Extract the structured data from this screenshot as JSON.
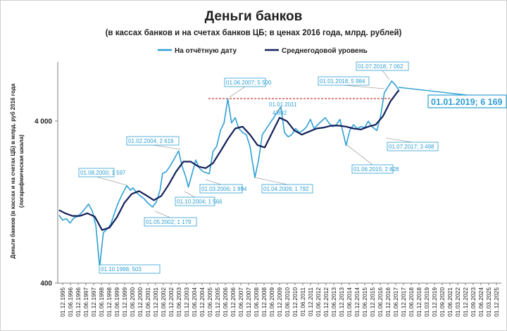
{
  "chart_data": {
    "type": "line",
    "title": "Деньги банков",
    "subtitle": "(в кассах банков и на счетах банков ЦБ; в ценах 2016 года, млрд. рублей)",
    "ylabel_lines": [
      "Деньги банков (в кассах и на счетах ЦБ) в млрд. руб 2016 года",
      "(логарифмическая шкала)"
    ],
    "y_scale": "log",
    "ylim": [
      400,
      10000
    ],
    "y_ticks": [
      {
        "value": 4000,
        "label": "4 000"
      },
      {
        "value": 400,
        "label": "400"
      }
    ],
    "x_range": [
      "1995-12-01",
      "2025-12-01"
    ],
    "x_tick_labels": [
      "01.12.1995",
      "01.06.1996",
      "01.12.1996",
      "01.06.1997",
      "01.12.1997",
      "01.06.1998",
      "01.12.1998",
      "01.06.1999",
      "01.12.1999",
      "01.06.2000",
      "01.12.2000",
      "01.06.2001",
      "01.12.2001",
      "01.06.2002",
      "01.12.2002",
      "01.06.2003",
      "01.12.2003",
      "01.06.2004",
      "01.12.2004",
      "01.06.2005",
      "01.12.2005",
      "01.06.2006",
      "01.12.2006",
      "01.06.2007",
      "01.12.2007",
      "01.06.2008",
      "01.12.2008",
      "01.06.2009",
      "01.12.2009",
      "01.06.2010",
      "01.12.2010",
      "01.06.2011",
      "01.12.2011",
      "01.06.2012",
      "01.12.2012",
      "01.06.2013",
      "01.12.2013",
      "01.06.2014",
      "01.12.2014",
      "01.06.2015",
      "01.12.2015",
      "01.06.2016",
      "01.12.2016",
      "01.06.2017",
      "01.12.2017",
      "01.06.2018",
      "01.12.2018",
      "01.03.2019",
      "01.12.2019",
      "01.09.2020",
      "01.06.2021",
      "01.03.2022",
      "01.12.2022",
      "01.09.2023",
      "01.06.2024",
      "01.03.2025",
      "01.12.2025"
    ],
    "grid": false,
    "legend_position": "top",
    "series": [
      {
        "name": "На отчётную дату",
        "color": "#2e9fd3",
        "points": [
          [
            "1996-01-01",
            1050
          ],
          [
            "1996-04-01",
            980
          ],
          [
            "1996-07-01",
            1000
          ],
          [
            "1996-10-01",
            940
          ],
          [
            "1997-01-01",
            1010
          ],
          [
            "1997-04-01",
            1030
          ],
          [
            "1997-07-01",
            1080
          ],
          [
            "1997-10-01",
            1150
          ],
          [
            "1998-01-01",
            1230
          ],
          [
            "1998-04-01",
            1120
          ],
          [
            "1998-07-01",
            900
          ],
          [
            "1998-10-01",
            503
          ],
          [
            "1999-01-01",
            820
          ],
          [
            "1999-04-01",
            860
          ],
          [
            "1999-07-01",
            920
          ],
          [
            "1999-10-01",
            1080
          ],
          [
            "2000-01-01",
            1250
          ],
          [
            "2000-04-01",
            1400
          ],
          [
            "2000-08-01",
            1597
          ],
          [
            "2000-11-01",
            1500
          ],
          [
            "2001-01-01",
            1550
          ],
          [
            "2001-04-01",
            1450
          ],
          [
            "2001-07-01",
            1380
          ],
          [
            "2001-10-01",
            1330
          ],
          [
            "2002-01-01",
            1250
          ],
          [
            "2002-05-01",
            1179
          ],
          [
            "2002-08-01",
            1270
          ],
          [
            "2002-11-01",
            1500
          ],
          [
            "2003-01-01",
            1900
          ],
          [
            "2003-04-01",
            1950
          ],
          [
            "2003-07-01",
            2100
          ],
          [
            "2003-10-01",
            2300
          ],
          [
            "2004-02-01",
            2619
          ],
          [
            "2004-05-01",
            2100
          ],
          [
            "2004-08-01",
            1800
          ],
          [
            "2004-10-01",
            1566
          ],
          [
            "2005-01-01",
            1900
          ],
          [
            "2005-04-01",
            2300
          ],
          [
            "2005-07-01",
            2050
          ],
          [
            "2005-10-01",
            1950
          ],
          [
            "2006-03-01",
            1894
          ],
          [
            "2006-06-01",
            2600
          ],
          [
            "2006-09-01",
            2800
          ],
          [
            "2006-12-01",
            3500
          ],
          [
            "2007-03-01",
            3900
          ],
          [
            "2007-06-01",
            5500
          ],
          [
            "2007-09-01",
            3900
          ],
          [
            "2007-12-01",
            4200
          ],
          [
            "2008-03-01",
            3600
          ],
          [
            "2008-06-01",
            3400
          ],
          [
            "2008-09-01",
            3300
          ],
          [
            "2008-12-01",
            2800
          ],
          [
            "2009-04-01",
            1792
          ],
          [
            "2009-07-01",
            2300
          ],
          [
            "2009-10-01",
            3300
          ],
          [
            "2011-01-01",
            4892
          ],
          [
            "2011-04-01",
            3400
          ],
          [
            "2011-07-01",
            3200
          ],
          [
            "2011-10-01",
            3300
          ],
          [
            "2012-01-01",
            3600
          ],
          [
            "2012-04-01",
            3400
          ],
          [
            "2012-07-01",
            3500
          ],
          [
            "2012-10-01",
            3700
          ],
          [
            "2013-01-01",
            4100
          ],
          [
            "2013-04-01",
            3600
          ],
          [
            "2013-07-01",
            3800
          ],
          [
            "2013-10-01",
            4000
          ],
          [
            "2014-01-01",
            4200
          ],
          [
            "2014-04-01",
            3900
          ],
          [
            "2014-07-01",
            3700
          ],
          [
            "2014-10-01",
            3800
          ],
          [
            "2015-01-01",
            4100
          ],
          [
            "2015-06-01",
            2828
          ],
          [
            "2015-09-01",
            3500
          ],
          [
            "2015-12-01",
            3800
          ],
          [
            "2016-03-01",
            3600
          ],
          [
            "2016-06-01",
            3700
          ],
          [
            "2016-09-01",
            3650
          ],
          [
            "2016-12-01",
            4000
          ],
          [
            "2017-03-01",
            3700
          ],
          [
            "2017-07-01",
            3498
          ],
          [
            "2017-10-01",
            4300
          ],
          [
            "2018-01-01",
            5984
          ],
          [
            "2018-04-01",
            6500
          ],
          [
            "2018-07-01",
            7062
          ],
          [
            "2018-10-01",
            6700
          ],
          [
            "2019-01-01",
            6169
          ]
        ]
      },
      {
        "name": "Среднегодовой уровень",
        "color": "#13205a",
        "points": [
          [
            "1996-01-01",
            1130
          ],
          [
            "1996-06-01",
            1080
          ],
          [
            "1996-12-01",
            1040
          ],
          [
            "1997-06-01",
            1040
          ],
          [
            "1997-12-01",
            1080
          ],
          [
            "1998-06-01",
            1030
          ],
          [
            "1998-12-01",
            850
          ],
          [
            "1999-06-01",
            880
          ],
          [
            "1999-12-01",
            1020
          ],
          [
            "2000-06-01",
            1250
          ],
          [
            "2000-12-01",
            1420
          ],
          [
            "2001-06-01",
            1480
          ],
          [
            "2001-12-01",
            1390
          ],
          [
            "2002-06-01",
            1300
          ],
          [
            "2002-12-01",
            1380
          ],
          [
            "2003-06-01",
            1620
          ],
          [
            "2003-12-01",
            1950
          ],
          [
            "2004-06-01",
            2250
          ],
          [
            "2004-12-01",
            2250
          ],
          [
            "2005-06-01",
            2100
          ],
          [
            "2005-12-01",
            2050
          ],
          [
            "2006-06-01",
            2200
          ],
          [
            "2006-12-01",
            2600
          ],
          [
            "2007-06-01",
            3100
          ],
          [
            "2007-12-01",
            3600
          ],
          [
            "2008-06-01",
            3700
          ],
          [
            "2008-12-01",
            3300
          ],
          [
            "2009-06-01",
            2850
          ],
          [
            "2009-12-01",
            2750
          ],
          [
            "2010-06-01",
            3400
          ],
          [
            "2010-12-01",
            4200
          ],
          [
            "2011-06-01",
            4000
          ],
          [
            "2011-12-01",
            3500
          ],
          [
            "2012-06-01",
            3300
          ],
          [
            "2012-12-01",
            3450
          ],
          [
            "2013-06-01",
            3600
          ],
          [
            "2013-12-01",
            3650
          ],
          [
            "2014-06-01",
            3750
          ],
          [
            "2014-12-01",
            3750
          ],
          [
            "2015-06-01",
            3700
          ],
          [
            "2015-12-01",
            3600
          ],
          [
            "2016-06-01",
            3550
          ],
          [
            "2016-12-01",
            3700
          ],
          [
            "2017-06-01",
            3800
          ],
          [
            "2017-12-01",
            4300
          ],
          [
            "2018-06-01",
            5300
          ],
          [
            "2018-12-01",
            6100
          ],
          [
            "2019-01-01",
            6169
          ]
        ]
      }
    ],
    "reference_line": {
      "value": 5500,
      "color": "#c00000",
      "style": "dashed",
      "from": "2007-06-01",
      "to": "2018-07-01"
    },
    "annotations": [
      {
        "text": "01.08.2000;  1 597"
      },
      {
        "text": "01.10.1998;   503"
      },
      {
        "text": "01.05.2002;  1 179"
      },
      {
        "text": "01.02.2004;  2 619"
      },
      {
        "text": "01.10.2004;  1 566"
      },
      {
        "text": "01.03.2006;  1 894"
      },
      {
        "text": "01.06.2007;  5 500"
      },
      {
        "text": "01.04.2009;  1 792"
      },
      {
        "text": "01.01.2011"
      },
      {
        "text": "4 892"
      },
      {
        "text": "01.06.2015;  2 828"
      },
      {
        "text": "01.01.2018;  5 984"
      },
      {
        "text": "01.07.2018;  7 062"
      },
      {
        "text": "01.07.2017;  3 498"
      },
      {
        "text": "01.01.2019;  6 169"
      }
    ]
  }
}
